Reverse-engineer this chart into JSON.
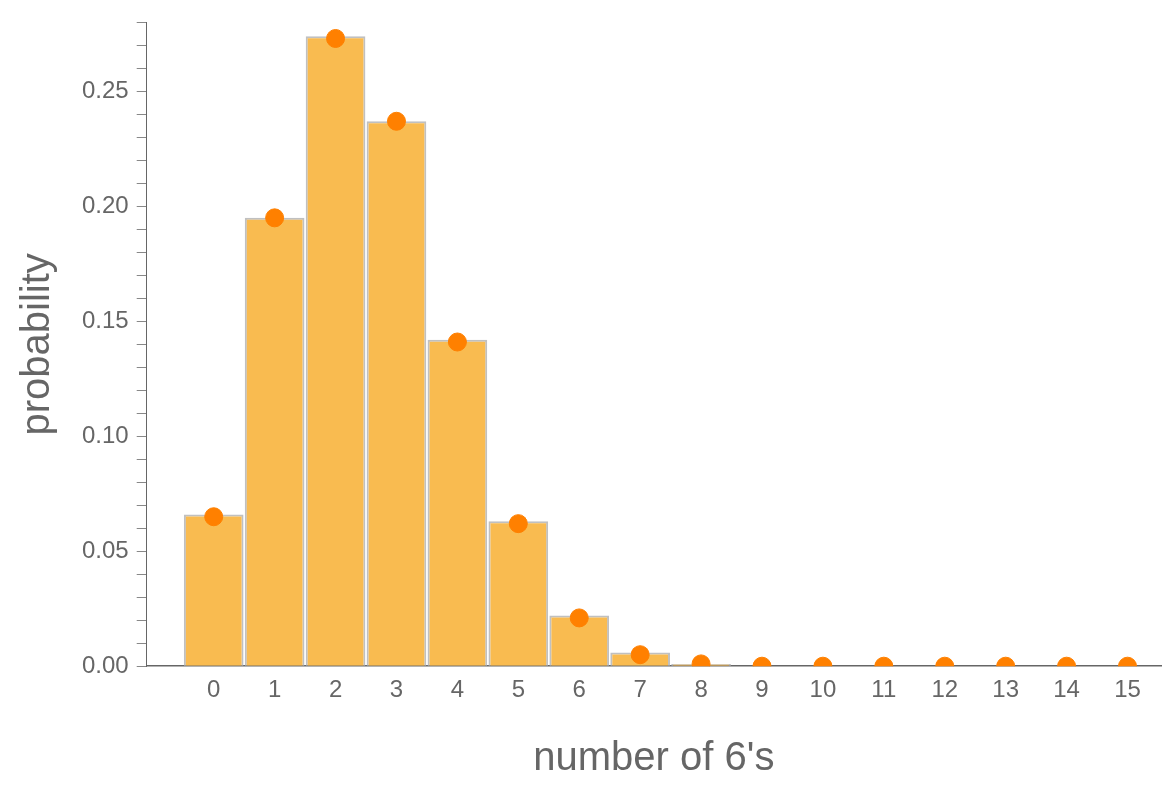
{
  "chart_data": {
    "type": "bar",
    "xlabel": "number of 6's",
    "ylabel": "probability",
    "xlim": [
      -1.1,
      15.55
    ],
    "xticks": [
      0,
      1,
      2,
      3,
      4,
      5,
      6,
      7,
      8,
      9,
      10,
      11,
      12,
      13,
      14,
      15
    ],
    "ylim": [
      0,
      0.28
    ],
    "yticks": [
      {
        "value": 0,
        "label": "0.00"
      },
      {
        "value": 0.01,
        "label": null
      },
      {
        "value": 0.02,
        "label": null
      },
      {
        "value": 0.03,
        "label": null
      },
      {
        "value": 0.04,
        "label": null
      },
      {
        "value": 0.05,
        "label": "0.05"
      },
      {
        "value": 0.06,
        "label": null
      },
      {
        "value": 0.07,
        "label": null
      },
      {
        "value": 0.08,
        "label": null
      },
      {
        "value": 0.09,
        "label": null
      },
      {
        "value": 0.1,
        "label": "0.10"
      },
      {
        "value": 0.11,
        "label": null
      },
      {
        "value": 0.12,
        "label": null
      },
      {
        "value": 0.13,
        "label": null
      },
      {
        "value": 0.14,
        "label": null
      },
      {
        "value": 0.15,
        "label": "0.15"
      },
      {
        "value": 0.16,
        "label": null
      },
      {
        "value": 0.17,
        "label": null
      },
      {
        "value": 0.18,
        "label": null
      },
      {
        "value": 0.19,
        "label": null
      },
      {
        "value": 0.2,
        "label": "0.20"
      },
      {
        "value": 0.21,
        "label": null
      },
      {
        "value": 0.22,
        "label": null
      },
      {
        "value": 0.23,
        "label": null
      },
      {
        "value": 0.24,
        "label": null
      },
      {
        "value": 0.25,
        "label": "0.25"
      },
      {
        "value": 0.26,
        "label": null
      },
      {
        "value": 0.27,
        "label": null
      },
      {
        "value": 0.28,
        "label": null
      }
    ],
    "grid": false,
    "legend": false,
    "series": [
      {
        "color": "#f9bb50",
        "x": [
          0,
          1,
          2,
          3,
          4,
          5,
          6,
          7,
          8
        ],
        "values": [
          0.066,
          0.195,
          0.274,
          0.237,
          0.142,
          0.063,
          0.022,
          0.006,
          0.001
        ]
      },
      {
        "type": "scatter",
        "color": "#ff8000",
        "marker": "circle",
        "x": [
          0,
          1,
          2,
          3,
          4,
          5,
          6,
          7,
          8,
          9,
          10,
          11,
          12,
          13,
          14,
          15
        ],
        "values": [
          0.065,
          0.195,
          0.273,
          0.237,
          0.141,
          0.062,
          0.021,
          0.005,
          0.001,
          0,
          0,
          0,
          0,
          0,
          0,
          0
        ]
      }
    ]
  }
}
